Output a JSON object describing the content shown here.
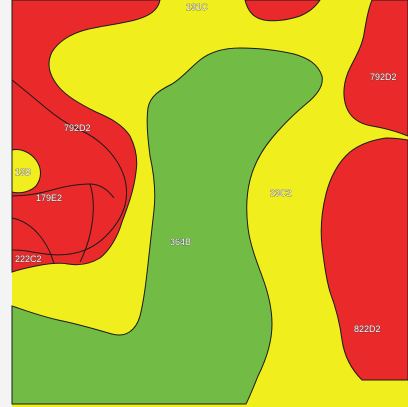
{
  "map": {
    "colors": {
      "red": "#ea2a2a",
      "yellow": "#f1ee1e",
      "green": "#72bc45",
      "border": "#1a1a1a",
      "background": "#f4f4f4"
    },
    "units": [
      {
        "id": "u131c",
        "label": "131C",
        "color": "yellow"
      },
      {
        "id": "u792d2_ne",
        "label": "792D2",
        "color": "red"
      },
      {
        "id": "u792d2_w",
        "label": "792D2",
        "color": "red"
      },
      {
        "id": "u13b",
        "label": "13B",
        "color": "yellow"
      },
      {
        "id": "u179e2",
        "label": "179E2",
        "color": "red"
      },
      {
        "id": "u222c2",
        "label": "222C2",
        "color": "red"
      },
      {
        "id": "u364b",
        "label": "364B",
        "color": "green"
      },
      {
        "id": "u23c2",
        "label": "23C2",
        "color": "yellow"
      },
      {
        "id": "u822d2",
        "label": "822D2",
        "color": "red"
      }
    ]
  }
}
